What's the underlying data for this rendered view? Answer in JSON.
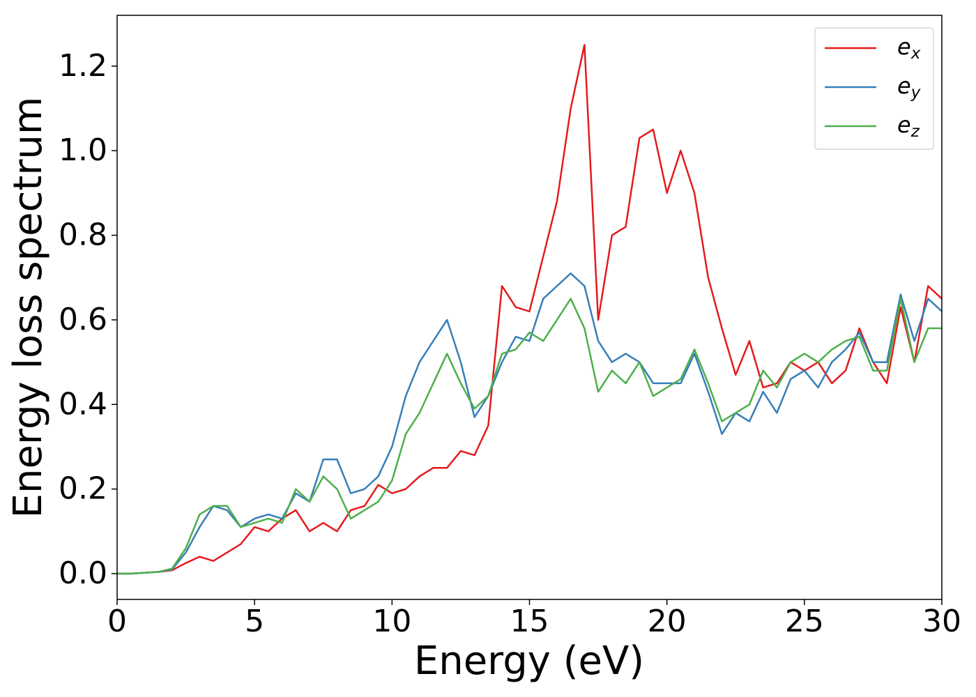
{
  "chart_data": {
    "type": "line",
    "xlabel": "Energy (eV)",
    "ylabel": "Energy loss spectrum",
    "xlim": [
      0,
      30
    ],
    "ylim": [
      -0.061,
      1.32
    ],
    "xticks": [
      0,
      5,
      10,
      15,
      20,
      25,
      30
    ],
    "yticks": [
      {
        "value": 0,
        "label": "0.0"
      },
      {
        "value": 0.2,
        "label": "0.2"
      },
      {
        "value": 0.4,
        "label": "0.4"
      },
      {
        "value": 0.6,
        "label": "0.6"
      },
      {
        "value": 0.8,
        "label": "0.8"
      },
      {
        "value": 1.0,
        "label": "1.0"
      },
      {
        "value": 1.2,
        "label": "1.2"
      }
    ],
    "grid": false,
    "legend": "upper right",
    "x": [
      0,
      0.5,
      1,
      1.5,
      2,
      2.5,
      3,
      3.5,
      4,
      4.5,
      5,
      5.5,
      6,
      6.5,
      7,
      7.5,
      8,
      8.5,
      9,
      9.5,
      10,
      10.5,
      11,
      11.5,
      12,
      12.5,
      13,
      13.5,
      14,
      14.5,
      15,
      15.5,
      16,
      16.5,
      17,
      17.5,
      18,
      18.5,
      19,
      19.5,
      20,
      20.5,
      21,
      21.5,
      22,
      22.5,
      23,
      23.5,
      24,
      24.5,
      25,
      25.5,
      26,
      26.5,
      27,
      27.5,
      28,
      28.5,
      29,
      29.5,
      30
    ],
    "series": [
      {
        "name": "e_x",
        "color": "#e41a1c",
        "values": [
          0,
          0,
          0.002,
          0.004,
          0.008,
          0.025,
          0.04,
          0.03,
          0.05,
          0.07,
          0.11,
          0.1,
          0.13,
          0.15,
          0.1,
          0.12,
          0.1,
          0.15,
          0.16,
          0.21,
          0.19,
          0.2,
          0.23,
          0.25,
          0.25,
          0.29,
          0.28,
          0.35,
          0.68,
          0.63,
          0.62,
          0.75,
          0.88,
          1.1,
          1.25,
          0.6,
          0.8,
          0.82,
          1.03,
          1.05,
          0.9,
          1.0,
          0.9,
          0.7,
          0.58,
          0.47,
          0.55,
          0.44,
          0.45,
          0.5,
          0.48,
          0.5,
          0.45,
          0.48,
          0.58,
          0.5,
          0.45,
          0.63,
          0.5,
          0.68,
          0.65
        ]
      },
      {
        "name": "e_y",
        "color": "#377eb8",
        "values": [
          0,
          0,
          0.002,
          0.004,
          0.01,
          0.05,
          0.11,
          0.16,
          0.15,
          0.11,
          0.13,
          0.14,
          0.13,
          0.19,
          0.17,
          0.27,
          0.27,
          0.19,
          0.2,
          0.23,
          0.3,
          0.42,
          0.5,
          0.55,
          0.6,
          0.5,
          0.37,
          0.42,
          0.5,
          0.56,
          0.55,
          0.65,
          0.68,
          0.71,
          0.68,
          0.55,
          0.5,
          0.52,
          0.5,
          0.45,
          0.45,
          0.45,
          0.52,
          0.43,
          0.33,
          0.38,
          0.36,
          0.43,
          0.38,
          0.46,
          0.48,
          0.44,
          0.5,
          0.53,
          0.57,
          0.5,
          0.5,
          0.66,
          0.55,
          0.65,
          0.62
        ]
      },
      {
        "name": "e_z",
        "color": "#4daf4a",
        "values": [
          0,
          0,
          0.002,
          0.004,
          0.012,
          0.06,
          0.14,
          0.16,
          0.16,
          0.11,
          0.12,
          0.13,
          0.12,
          0.2,
          0.17,
          0.23,
          0.2,
          0.13,
          0.15,
          0.17,
          0.22,
          0.33,
          0.38,
          0.45,
          0.52,
          0.45,
          0.39,
          0.42,
          0.52,
          0.53,
          0.57,
          0.55,
          0.6,
          0.65,
          0.58,
          0.43,
          0.48,
          0.45,
          0.5,
          0.42,
          0.44,
          0.46,
          0.53,
          0.45,
          0.36,
          0.38,
          0.4,
          0.48,
          0.44,
          0.5,
          0.52,
          0.5,
          0.53,
          0.55,
          0.56,
          0.48,
          0.48,
          0.65,
          0.5,
          0.58,
          0.58
        ]
      }
    ]
  }
}
